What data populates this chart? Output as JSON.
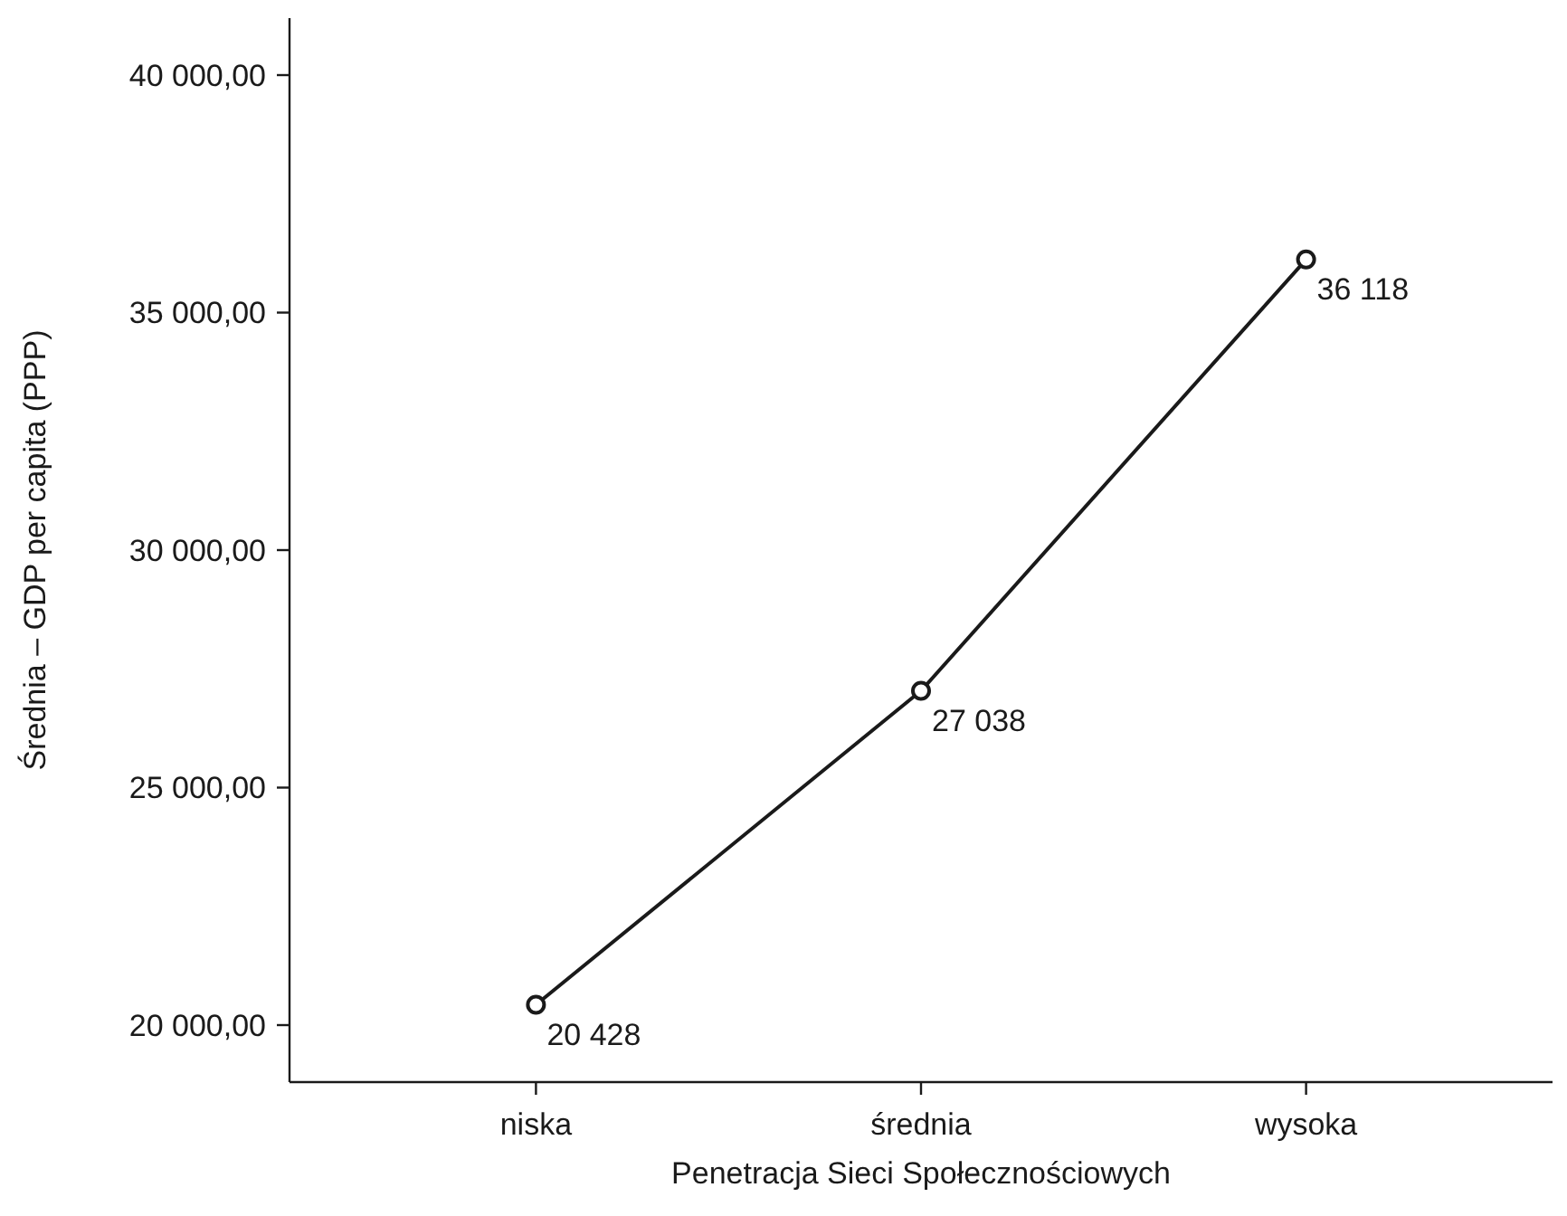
{
  "chart_data": {
    "type": "line",
    "xlabel": "Penetracja Sieci Społecznościowych",
    "ylabel": "Średnia – GDP per capita (PPP)",
    "categories": [
      "niska",
      "średnia",
      "wysoka"
    ],
    "series": [
      {
        "color": "#1a1a1a",
        "values": [
          20428,
          27038,
          36118
        ],
        "value_labels": [
          "20 428",
          "27 038",
          "36 118"
        ]
      }
    ],
    "ylim": [
      18800,
      41200
    ],
    "yticks": [
      {
        "value": 20000,
        "label": "20 000,00"
      },
      {
        "value": 25000,
        "label": "25 000,00"
      },
      {
        "value": 30000,
        "label": "30 000,00"
      },
      {
        "value": 35000,
        "label": "35 000,00"
      },
      {
        "value": 40000,
        "label": "40 000,00"
      }
    ],
    "grid": false,
    "marker": "circle",
    "line_style": "solid"
  }
}
